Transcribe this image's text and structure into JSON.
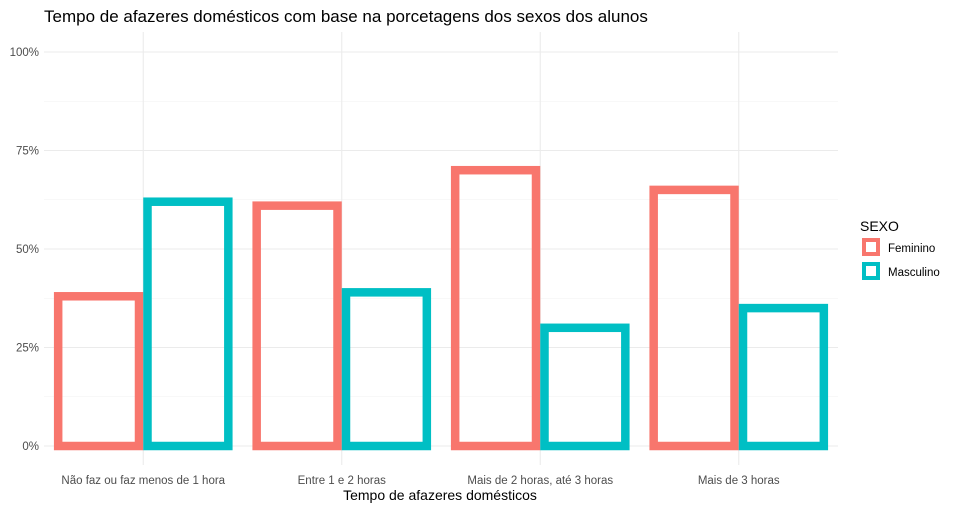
{
  "chart_data": {
    "type": "bar",
    "title": "Tempo de afazeres domésticos com base na porcetagens dos sexos dos alunos",
    "xlabel": "Tempo de afazeres domésticos",
    "ylabel": "",
    "categories": [
      "Não faz ou faz menos de 1 hora",
      "Entre 1 e 2 horas",
      "Mais de 2 horas, até 3 horas",
      "Mais de 3 horas"
    ],
    "series": [
      {
        "name": "Feminino",
        "values": [
          0.38,
          0.61,
          0.7,
          0.65
        ],
        "color": "#F8766D"
      },
      {
        "name": "Masculino",
        "values": [
          0.62,
          0.39,
          0.3,
          0.35
        ],
        "color": "#00BFC4"
      }
    ],
    "ylim": [
      0,
      1
    ],
    "yticks": [
      0,
      0.25,
      0.5,
      0.75,
      1
    ],
    "ytick_labels": [
      "0%",
      "25%",
      "50%",
      "75%",
      "100%"
    ],
    "grid": true,
    "bar_style": "outline",
    "legend": {
      "title": "SEXO",
      "position": "right"
    }
  }
}
